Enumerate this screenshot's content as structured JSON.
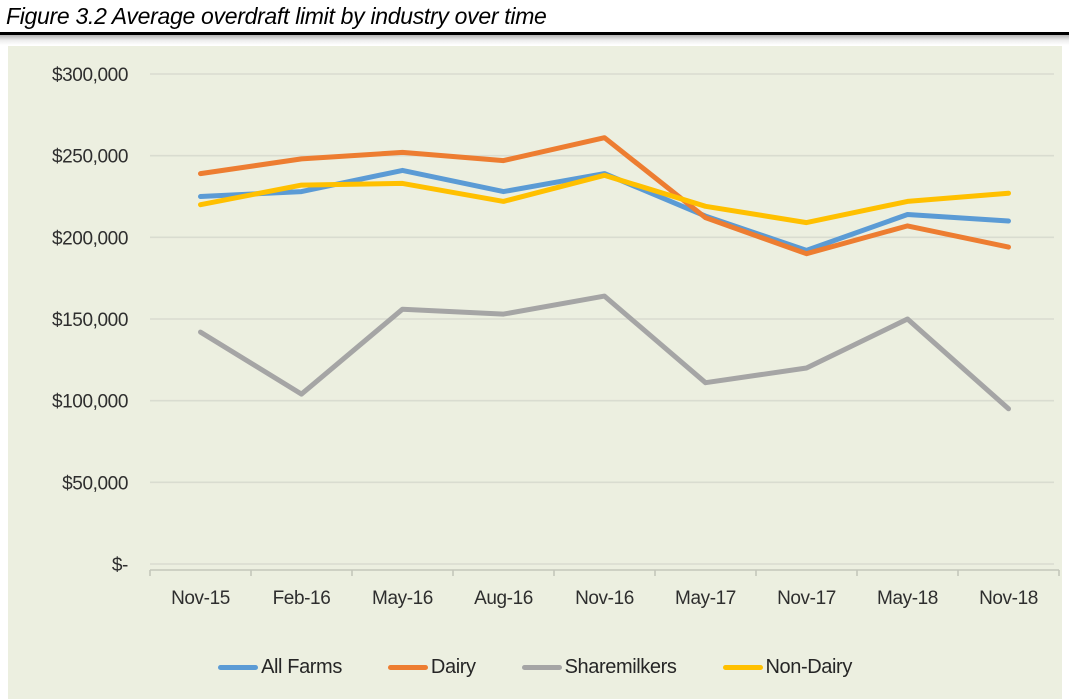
{
  "title": "Figure 3.2 Average overdraft limit by industry over time",
  "chart_data": {
    "type": "line",
    "title": "Figure 3.2 Average overdraft limit by industry over time",
    "categories": [
      "Nov-15",
      "Feb-16",
      "May-16",
      "Aug-16",
      "Nov-16",
      "May-17",
      "Nov-17",
      "May-18",
      "Nov-18"
    ],
    "series": [
      {
        "name": "All Farms",
        "color": "#5B9BD5",
        "values": [
          225000,
          228000,
          241000,
          228000,
          239000,
          213000,
          192000,
          214000,
          210000
        ]
      },
      {
        "name": "Dairy",
        "color": "#ED7D31",
        "values": [
          239000,
          248000,
          252000,
          247000,
          261000,
          212000,
          190000,
          207000,
          194000
        ]
      },
      {
        "name": "Sharemilkers",
        "color": "#A5A5A5",
        "values": [
          142000,
          104000,
          156000,
          153000,
          164000,
          111000,
          120000,
          150000,
          95000
        ]
      },
      {
        "name": "Non-Dairy",
        "color": "#FFC000",
        "values": [
          220000,
          232000,
          233000,
          222000,
          238000,
          219000,
          209000,
          222000,
          227000
        ]
      }
    ],
    "xlabel": "",
    "ylabel": "",
    "ylim": [
      0,
      300000
    ],
    "y_tick_values": [
      300000,
      250000,
      200000,
      150000,
      100000,
      50000,
      0
    ],
    "y_tick_labels": [
      "$300,000",
      "$250,000",
      "$200,000",
      "$150,000",
      "$100,000",
      "$50,000",
      "$-"
    ],
    "grid": true,
    "legend_position": "bottom",
    "plot_background": "#ECEFE0",
    "gridline_color": "#D9DCD0",
    "axis_line_color": "#C4C7BB",
    "label_color": "#2E2E2E"
  }
}
